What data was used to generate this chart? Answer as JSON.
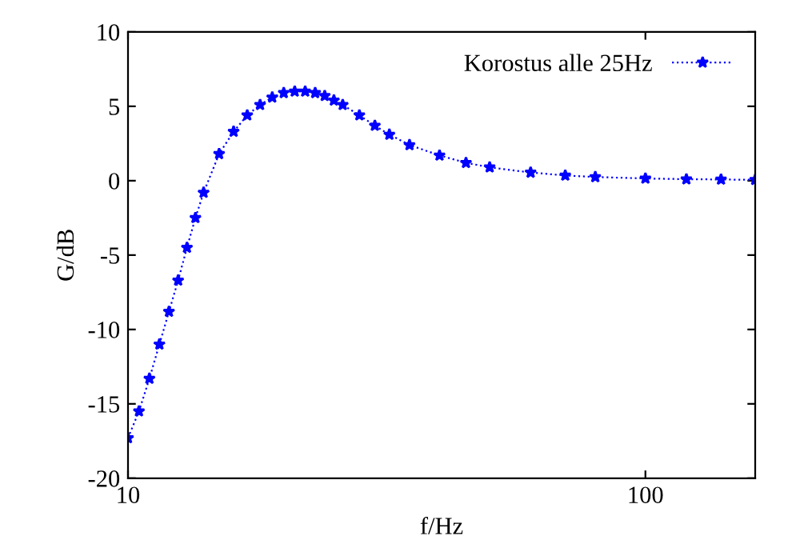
{
  "chart_data": {
    "type": "line",
    "xlabel": "f/Hz",
    "ylabel": "G/dB",
    "log": "x",
    "xlim": [
      10,
      163
    ],
    "xticks": [
      10,
      100
    ],
    "ylim": [
      -20,
      10
    ],
    "yticks": [
      -20,
      -15,
      -10,
      -5,
      0,
      5,
      10
    ],
    "grid": false,
    "legend": "top right",
    "marker": "star",
    "line_style": "dotted",
    "series": [
      {
        "name": "Korostus alle 25Hz",
        "color": "#0000ff",
        "x": [
          10,
          10.5,
          11,
          11.5,
          12,
          12.5,
          13,
          13.5,
          14,
          15,
          16,
          17,
          18,
          19,
          20,
          21,
          22,
          23,
          24,
          25,
          26,
          28,
          30,
          32,
          35,
          40,
          45,
          50,
          60,
          70,
          80,
          100,
          120,
          140,
          163
        ],
        "values": [
          -17.3,
          -15.5,
          -13.3,
          -11,
          -8.8,
          -6.7,
          -4.5,
          -2.5,
          -0.8,
          1.8,
          3.3,
          4.4,
          5.1,
          5.6,
          5.9,
          6.0,
          6.0,
          5.9,
          5.7,
          5.4,
          5.1,
          4.4,
          3.7,
          3.1,
          2.4,
          1.7,
          1.2,
          0.9,
          0.55,
          0.35,
          0.25,
          0.15,
          0.1,
          0.08,
          0.06
        ]
      }
    ]
  }
}
